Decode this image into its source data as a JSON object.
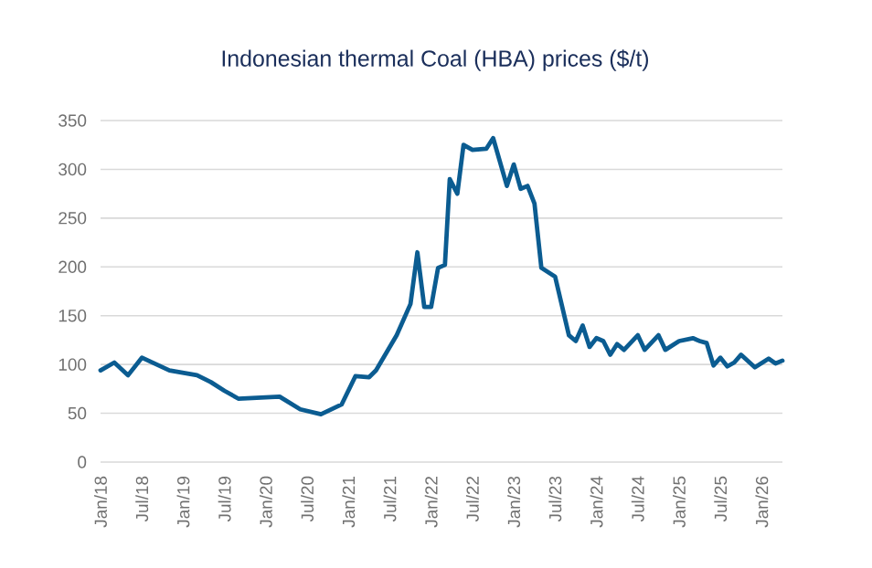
{
  "chart_data": {
    "type": "line",
    "title": "Indonesian thermal Coal (HBA) prices ($/t)",
    "x": [
      "2018-01",
      "2018-03",
      "2018-05",
      "2018-07",
      "2018-11",
      "2019-03",
      "2019-05",
      "2019-07",
      "2019-09",
      "2020-03",
      "2020-06",
      "2020-09",
      "2020-12",
      "2021-02",
      "2021-04",
      "2021-05",
      "2021-08",
      "2021-10",
      "2021-11",
      "2021-12",
      "2022-01",
      "2022-02",
      "2022-03-01",
      "2022-03-22",
      "2022-04-25",
      "2022-05-22",
      "2022-07",
      "2022-09",
      "2022-10",
      "2022-12",
      "2023-01",
      "2023-02",
      "2023-03",
      "2023-04",
      "2023-05",
      "2023-07",
      "2023-09",
      "2023-10",
      "2023-11",
      "2023-12",
      "2024-01",
      "2024-02",
      "2024-03",
      "2024-04",
      "2024-05",
      "2024-07",
      "2024-08",
      "2024-10",
      "2024-11",
      "2025-01",
      "2025-03",
      "2025-04",
      "2025-05",
      "2025-06",
      "2025-07",
      "2025-08",
      "2025-09",
      "2025-10",
      "2025-12",
      "2026-02",
      "2026-03",
      "2026-04"
    ],
    "series": [
      {
        "color": "#0b5c91",
        "values": [
          94,
          102,
          89,
          107,
          94,
          89,
          82,
          73,
          65,
          67,
          54,
          49,
          59,
          88,
          87,
          94,
          130,
          162,
          215,
          159,
          159,
          199,
          202,
          290,
          275,
          325,
          320,
          321,
          332,
          283,
          305,
          280,
          283,
          265,
          199,
          190,
          130,
          124,
          140,
          118,
          127,
          124,
          110,
          121,
          115,
          130,
          115,
          130,
          115,
          124,
          127,
          124,
          122,
          99,
          107,
          98,
          102,
          110,
          97,
          106,
          101,
          104
        ]
      }
    ],
    "xlim": [
      "2018-01",
      "2026-04"
    ],
    "xticks": [
      {
        "value": "2018-01",
        "label": "Jan/18"
      },
      {
        "value": "2018-07",
        "label": "Jul/18"
      },
      {
        "value": "2019-01",
        "label": "Jan/19"
      },
      {
        "value": "2019-07",
        "label": "Jul/19"
      },
      {
        "value": "2020-01",
        "label": "Jan/20"
      },
      {
        "value": "2020-07",
        "label": "Jul/20"
      },
      {
        "value": "2021-01",
        "label": "Jan/21"
      },
      {
        "value": "2021-07",
        "label": "Jul/21"
      },
      {
        "value": "2022-01",
        "label": "Jan/22"
      },
      {
        "value": "2022-07",
        "label": "Jul/22"
      },
      {
        "value": "2023-01",
        "label": "Jan/23"
      },
      {
        "value": "2023-07",
        "label": "Jul/23"
      },
      {
        "value": "2024-01",
        "label": "Jan/24"
      },
      {
        "value": "2024-07",
        "label": "Jul/24"
      },
      {
        "value": "2025-01",
        "label": "Jan/25"
      },
      {
        "value": "2025-07",
        "label": "Jul/25"
      },
      {
        "value": "2026-01",
        "label": "Jan/26"
      }
    ],
    "ylim": [
      0,
      350
    ],
    "yticks": [
      0,
      50,
      100,
      150,
      200,
      250,
      300,
      350
    ],
    "grid": "y",
    "marker": "none",
    "line_style": "solid"
  }
}
